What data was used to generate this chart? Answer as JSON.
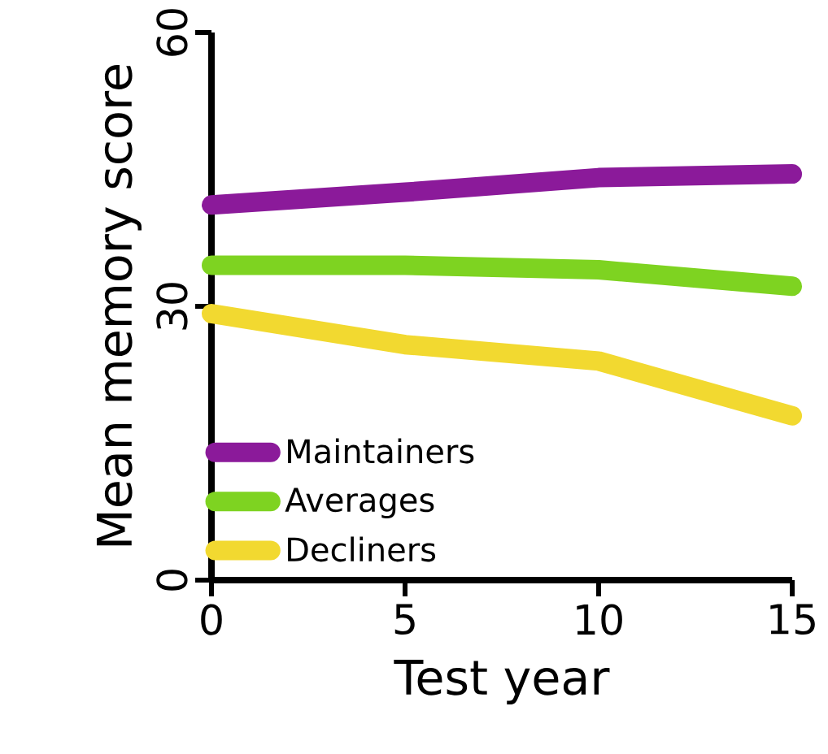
{
  "chart_data": {
    "type": "line",
    "xlabel": "Test year",
    "ylabel": "Mean memory score",
    "x": [
      0,
      5,
      10,
      15
    ],
    "series": [
      {
        "name": "Maintainers",
        "color": "#8b1a9a",
        "values": [
          41.1,
          42.5,
          44.1,
          44.5
        ]
      },
      {
        "name": "Averages",
        "color": "#7ed321",
        "values": [
          34.5,
          34.5,
          34.0,
          32.2
        ]
      },
      {
        "name": "Decliners",
        "color": "#f2d930",
        "values": [
          29.2,
          25.8,
          24.0,
          18.0
        ]
      }
    ],
    "xlim": [
      0,
      15
    ],
    "ylim": [
      0,
      60
    ],
    "xticks": [
      0,
      5,
      10,
      15
    ],
    "yticks": [
      0,
      30,
      60
    ],
    "legend": "bottom left",
    "grid": false,
    "marker": "none",
    "line_style": "solid"
  }
}
